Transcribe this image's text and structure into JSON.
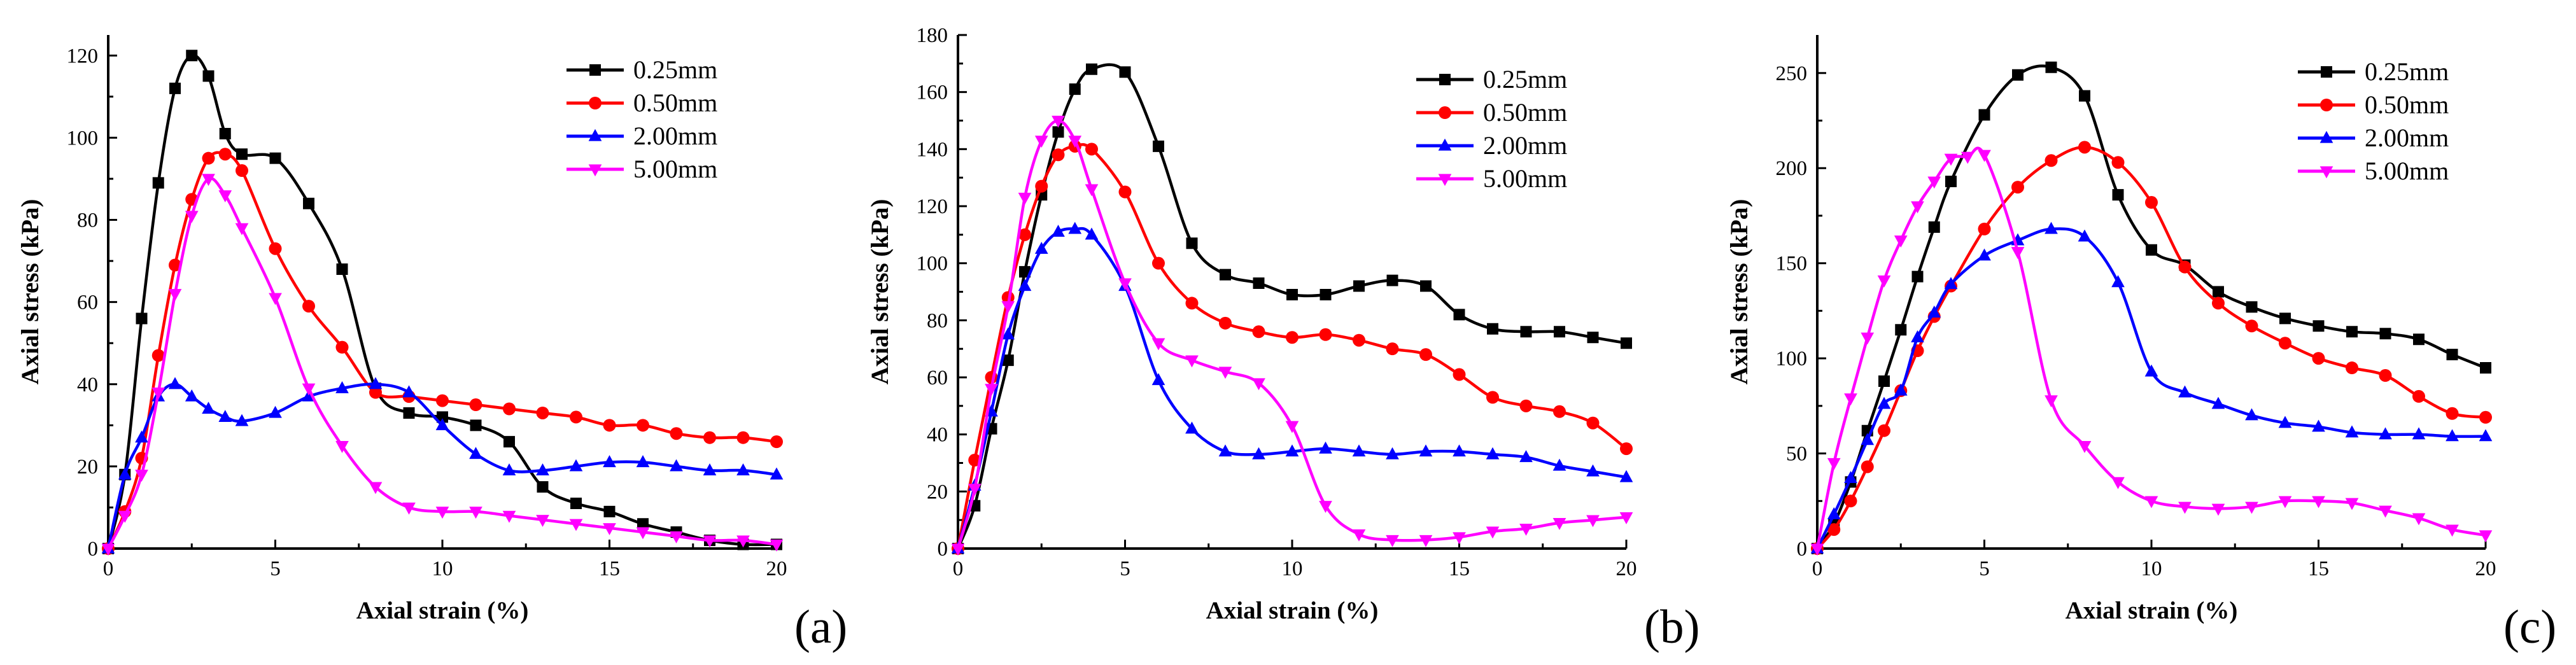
{
  "chart_data": [
    {
      "type": "line",
      "panel_label": "(a)",
      "xlabel": "Axial strain (%)",
      "ylabel": "Axial stress (kPa)",
      "xlim": [
        0,
        20
      ],
      "ylim": [
        0,
        125
      ],
      "xticks": [
        0,
        5,
        10,
        15,
        20
      ],
      "yticks": [
        0,
        20,
        40,
        60,
        80,
        100,
        120
      ],
      "grid": false,
      "legend": "top-right",
      "series": [
        {
          "name": "0.25mm",
          "color": "#000000",
          "marker": "square",
          "x": [
            0,
            0.5,
            1,
            1.5,
            2,
            2.5,
            3,
            3.5,
            4,
            5,
            6,
            7,
            8,
            9,
            10,
            11,
            12,
            13,
            14,
            15,
            16,
            17,
            18,
            19,
            20
          ],
          "y": [
            0,
            18,
            56,
            89,
            112,
            120,
            115,
            101,
            96,
            95,
            84,
            68,
            39,
            33,
            32,
            30,
            26,
            15,
            11,
            9,
            6,
            4,
            2,
            1,
            1
          ]
        },
        {
          "name": "0.50mm",
          "color": "#ff0000",
          "marker": "circle",
          "x": [
            0,
            0.5,
            1,
            1.5,
            2,
            2.5,
            3,
            3.5,
            4,
            5,
            6,
            7,
            8,
            9,
            10,
            11,
            12,
            13,
            14,
            15,
            16,
            17,
            18,
            19,
            20
          ],
          "y": [
            0,
            9,
            22,
            47,
            69,
            85,
            95,
            96,
            92,
            73,
            59,
            49,
            38,
            37,
            36,
            35,
            34,
            33,
            32,
            30,
            30,
            28,
            27,
            27,
            26
          ]
        },
        {
          "name": "2.00mm",
          "color": "#0000ff",
          "marker": "triangle-up",
          "x": [
            0,
            0.5,
            1,
            1.5,
            2,
            2.5,
            3,
            3.5,
            4,
            5,
            6,
            7,
            8,
            9,
            10,
            11,
            12,
            13,
            14,
            15,
            16,
            17,
            18,
            19,
            20
          ],
          "y": [
            0,
            18,
            27,
            37,
            40,
            37,
            34,
            32,
            31,
            33,
            37,
            39,
            40,
            38,
            30,
            23,
            19,
            19,
            20,
            21,
            21,
            20,
            19,
            19,
            18
          ]
        },
        {
          "name": "5.00mm",
          "color": "#ff00ff",
          "marker": "triangle-down",
          "x": [
            0,
            0.5,
            1,
            1.5,
            2,
            2.5,
            3,
            3.5,
            4,
            5,
            6,
            7,
            8,
            9,
            10,
            11,
            12,
            13,
            14,
            15,
            16,
            17,
            18,
            19,
            20
          ],
          "y": [
            0,
            8,
            18,
            38,
            62,
            81,
            90,
            86,
            78,
            61,
            39,
            25,
            15,
            10,
            9,
            9,
            8,
            7,
            6,
            5,
            4,
            3,
            2,
            2,
            1
          ]
        }
      ]
    },
    {
      "type": "line",
      "panel_label": "(b)",
      "xlabel": "Axial strain (%)",
      "ylabel": "Axial stress (kPa)",
      "xlim": [
        0,
        20
      ],
      "ylim": [
        0,
        180
      ],
      "xticks": [
        0,
        5,
        10,
        15,
        20
      ],
      "yticks": [
        0,
        20,
        40,
        60,
        80,
        100,
        120,
        140,
        160,
        180
      ],
      "grid": false,
      "legend": "top-right",
      "series": [
        {
          "name": "0.25mm",
          "color": "#000000",
          "marker": "square",
          "x": [
            0,
            0.5,
            1,
            1.5,
            2,
            2.5,
            3,
            3.5,
            4,
            5,
            6,
            7,
            8,
            9,
            10,
            11,
            12,
            13,
            14,
            15,
            16,
            17,
            18,
            19,
            20
          ],
          "y": [
            0,
            15,
            42,
            66,
            97,
            124,
            146,
            161,
            168,
            167,
            141,
            107,
            96,
            93,
            89,
            89,
            92,
            94,
            92,
            82,
            77,
            76,
            76,
            74,
            72
          ]
        },
        {
          "name": "0.50mm",
          "color": "#ff0000",
          "marker": "circle",
          "x": [
            0,
            0.5,
            1,
            1.5,
            2,
            2.5,
            3,
            3.5,
            4,
            5,
            6,
            7,
            8,
            9,
            10,
            11,
            12,
            13,
            14,
            15,
            16,
            17,
            18,
            19,
            20
          ],
          "y": [
            0,
            31,
            60,
            88,
            110,
            127,
            138,
            141,
            140,
            125,
            100,
            86,
            79,
            76,
            74,
            75,
            73,
            70,
            68,
            61,
            53,
            50,
            48,
            44,
            35
          ]
        },
        {
          "name": "2.00mm",
          "color": "#0000ff",
          "marker": "triangle-up",
          "x": [
            0,
            0.5,
            1,
            1.5,
            2,
            2.5,
            3,
            3.5,
            4,
            5,
            6,
            7,
            8,
            9,
            10,
            11,
            12,
            13,
            14,
            15,
            16,
            17,
            18,
            19,
            20
          ],
          "y": [
            0,
            22,
            48,
            75,
            92,
            105,
            111,
            112,
            110,
            92,
            59,
            42,
            34,
            33,
            34,
            35,
            34,
            33,
            34,
            34,
            33,
            32,
            29,
            27,
            25
          ]
        },
        {
          "name": "5.00mm",
          "color": "#ff00ff",
          "marker": "triangle-down",
          "x": [
            0,
            0.5,
            1,
            1.5,
            2,
            2.5,
            3,
            3.5,
            4,
            5,
            6,
            7,
            8,
            9,
            10,
            11,
            12,
            13,
            14,
            15,
            16,
            17,
            18,
            19,
            20
          ],
          "y": [
            0,
            21,
            56,
            85,
            123,
            143,
            150,
            143,
            126,
            93,
            72,
            66,
            62,
            58,
            43,
            15,
            5,
            3,
            3,
            4,
            6,
            7,
            9,
            10,
            11
          ]
        }
      ]
    },
    {
      "type": "line",
      "panel_label": "(c)",
      "xlabel": "Axial strain (%)",
      "ylabel": "Axial stress (kPa)",
      "xlim": [
        0,
        20
      ],
      "ylim": [
        0,
        270
      ],
      "xticks": [
        0,
        5,
        10,
        15,
        20
      ],
      "yticks": [
        0,
        50,
        100,
        150,
        200,
        250
      ],
      "grid": false,
      "legend": "top-right",
      "series": [
        {
          "name": "0.25mm",
          "color": "#000000",
          "marker": "square",
          "x": [
            0,
            0.5,
            1,
            1.5,
            2,
            2.5,
            3,
            3.5,
            4,
            5,
            6,
            7,
            8,
            9,
            10,
            11,
            12,
            13,
            14,
            15,
            16,
            17,
            18,
            19,
            20
          ],
          "y": [
            0,
            13,
            35,
            62,
            88,
            115,
            143,
            169,
            193,
            228,
            249,
            253,
            238,
            186,
            157,
            149,
            135,
            127,
            121,
            117,
            114,
            113,
            110,
            102,
            95
          ]
        },
        {
          "name": "0.50mm",
          "color": "#ff0000",
          "marker": "circle",
          "x": [
            0,
            0.5,
            1,
            1.5,
            2,
            2.5,
            3,
            3.5,
            4,
            5,
            6,
            7,
            8,
            9,
            10,
            11,
            12,
            13,
            14,
            15,
            16,
            17,
            18,
            19,
            20
          ],
          "y": [
            0,
            10,
            25,
            43,
            62,
            83,
            104,
            122,
            138,
            168,
            190,
            204,
            211,
            203,
            182,
            148,
            129,
            117,
            108,
            100,
            95,
            91,
            80,
            71,
            69
          ]
        },
        {
          "name": "2.00mm",
          "color": "#0000ff",
          "marker": "triangle-up",
          "x": [
            0,
            0.5,
            1,
            1.5,
            2,
            2.5,
            3,
            3.5,
            4,
            5,
            6,
            7,
            8,
            9,
            10,
            11,
            12,
            13,
            14,
            15,
            16,
            17,
            18,
            19,
            20
          ],
          "y": [
            0,
            18,
            37,
            57,
            76,
            83,
            111,
            124,
            139,
            154,
            162,
            168,
            164,
            140,
            93,
            82,
            76,
            70,
            66,
            64,
            61,
            60,
            60,
            59,
            59
          ]
        },
        {
          "name": "5.00mm",
          "color": "#ff00ff",
          "marker": "triangle-down",
          "x": [
            0,
            0.5,
            1,
            1.5,
            2,
            2.5,
            3,
            3.5,
            4,
            4.5,
            5,
            6,
            7,
            8,
            9,
            10,
            11,
            12,
            13,
            14,
            15,
            16,
            17,
            18,
            19,
            20
          ],
          "y": [
            0,
            45,
            79,
            111,
            141,
            162,
            180,
            193,
            205,
            206,
            207,
            156,
            78,
            54,
            35,
            25,
            22,
            21,
            22,
            25,
            25,
            24,
            20,
            16,
            10,
            7
          ]
        }
      ]
    }
  ]
}
